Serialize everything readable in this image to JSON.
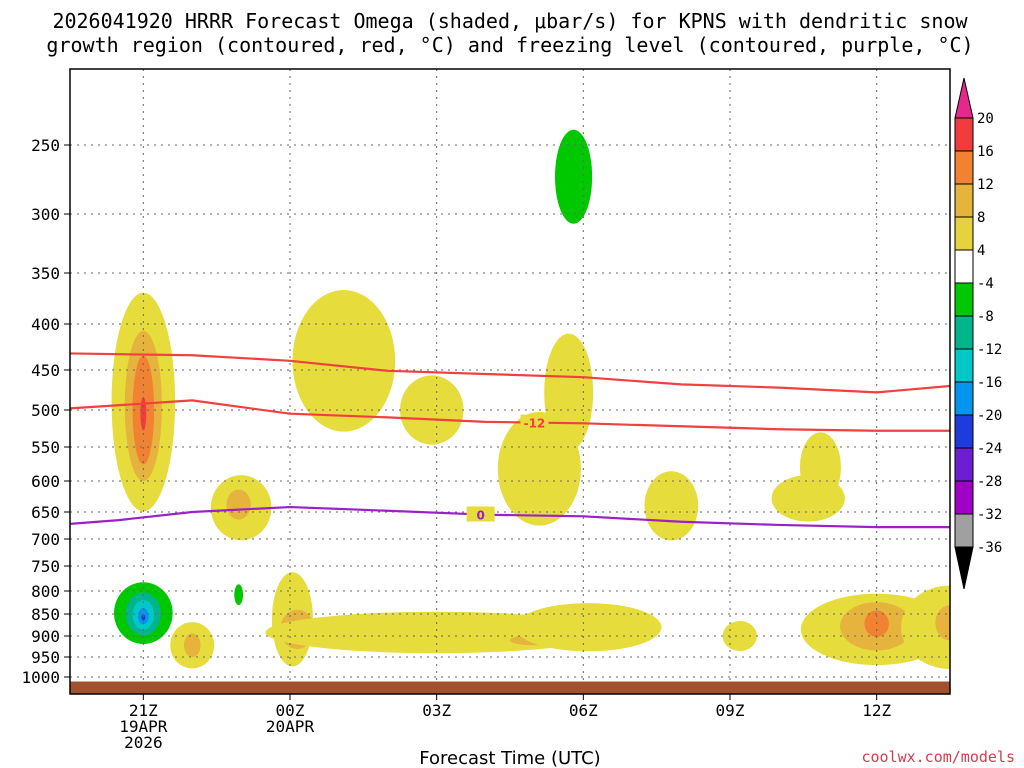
{
  "chart_data": {
    "type": "contour",
    "title_line1": "2026041920 HRRR Forecast Omega (shaded, μbar/s) for KPNS with dendritic snow",
    "title_line2": "growth region (contoured, red, °C) and freezing level (contoured, purple, °C)",
    "xlabel": "Forecast Time (UTC)",
    "credit": "coolwx.com/models",
    "x_range_hours": [
      -0.5,
      17.5
    ],
    "y_range_mb": [
      1020,
      200
    ],
    "y_ticks": [
      {
        "v": 250,
        "label": "250"
      },
      {
        "v": 300,
        "label": "300"
      },
      {
        "v": 350,
        "label": "350"
      },
      {
        "v": 400,
        "label": "400"
      },
      {
        "v": 450,
        "label": "450"
      },
      {
        "v": 500,
        "label": "500"
      },
      {
        "v": 550,
        "label": "550"
      },
      {
        "v": 600,
        "label": "600"
      },
      {
        "v": 650,
        "label": "650"
      },
      {
        "v": 700,
        "label": "700"
      },
      {
        "v": 750,
        "label": "750"
      },
      {
        "v": 800,
        "label": "800"
      },
      {
        "v": 850,
        "label": "850"
      },
      {
        "v": 900,
        "label": "900"
      },
      {
        "v": 950,
        "label": "950"
      },
      {
        "v": 1000,
        "label": "1000"
      }
    ],
    "x_ticks": [
      {
        "h": 1,
        "lines": [
          "21Z",
          "19APR",
          "2026"
        ]
      },
      {
        "h": 4,
        "lines": [
          "00Z",
          "20APR"
        ]
      },
      {
        "h": 7,
        "lines": [
          "03Z"
        ]
      },
      {
        "h": 10,
        "lines": [
          "06Z"
        ]
      },
      {
        "h": 13,
        "lines": [
          "09Z"
        ]
      },
      {
        "h": 16,
        "lines": [
          "12Z"
        ]
      }
    ],
    "colorbar": {
      "labels": [
        "20",
        "16",
        "12",
        "8",
        "4",
        "-4",
        "-8",
        "-12",
        "-16",
        "-20",
        "-24",
        "-28",
        "-32",
        "-36"
      ],
      "colors": [
        "#f03c3c",
        "#f08232",
        "#e6b43c",
        "#e6d23c",
        "#ffffff",
        "#00c800",
        "#00b48c",
        "#00c8c8",
        "#0096f0",
        "#1e3cdc",
        "#6e1ed2",
        "#a000c8",
        "#a0a0a0"
      ],
      "top_color": "#e6288c",
      "bottom_color": "#000000"
    },
    "contour_lines": [
      {
        "name": "-12",
        "color": "#f04040",
        "label_h": 9.0,
        "points": [
          [
            -0.5,
            432
          ],
          [
            2,
            434
          ],
          [
            4,
            440
          ],
          [
            6,
            451
          ],
          [
            8,
            455
          ],
          [
            10,
            459
          ],
          [
            12,
            468
          ],
          [
            14,
            472
          ],
          [
            16,
            478
          ],
          [
            17.5,
            470
          ]
        ]
      },
      {
        "name": "-12",
        "color": "#f04040",
        "label_h": 9.0,
        "points": [
          [
            -0.5,
            498
          ],
          [
            2,
            488
          ],
          [
            4,
            505
          ],
          [
            6,
            510
          ],
          [
            8,
            516
          ],
          [
            10,
            518
          ],
          [
            12,
            522
          ],
          [
            14,
            526
          ],
          [
            16,
            528
          ],
          [
            17.5,
            528
          ]
        ]
      },
      {
        "name": "0",
        "color": "#9b20c8",
        "label_h": 7.9,
        "points": [
          [
            -0.5,
            672
          ],
          [
            0.5,
            665
          ],
          [
            2,
            650
          ],
          [
            4,
            642
          ],
          [
            6,
            648
          ],
          [
            8,
            655
          ],
          [
            10,
            658
          ],
          [
            12,
            668
          ],
          [
            14,
            674
          ],
          [
            16,
            678
          ],
          [
            17.5,
            678
          ]
        ]
      }
    ],
    "omega_regions": [
      {
        "value": 4,
        "color": "#e6dc3c",
        "cx": 1.0,
        "cy": 490,
        "rx": 0.65,
        "ry": 135
      },
      {
        "value": 8,
        "color": "#e6b43c",
        "cx": 1.0,
        "cy": 495,
        "rx": 0.38,
        "ry": 95
      },
      {
        "value": 12,
        "color": "#f08232",
        "cx": 1.0,
        "cy": 500,
        "rx": 0.22,
        "ry": 70
      },
      {
        "value": 16,
        "color": "#f03c3c",
        "cx": 1.0,
        "cy": 505,
        "rx": 0.06,
        "ry": 22
      },
      {
        "value": 4,
        "color": "#e6dc3c",
        "cx": 3.0,
        "cy": 643,
        "rx": 0.62,
        "ry": 55
      },
      {
        "value": 8,
        "color": "#e6b43c",
        "cx": 2.95,
        "cy": 638,
        "rx": 0.25,
        "ry": 25
      },
      {
        "value": 4,
        "color": "#e6dc3c",
        "cx": 5.1,
        "cy": 440,
        "rx": 1.05,
        "ry": 80
      },
      {
        "value": 4,
        "color": "#e6dc3c",
        "cx": 6.9,
        "cy": 500,
        "rx": 0.65,
        "ry": 45
      },
      {
        "value": 4,
        "color": "#e6dc3c",
        "cx": 9.1,
        "cy": 582,
        "rx": 0.85,
        "ry": 85
      },
      {
        "value": 4,
        "color": "#e6dc3c",
        "cx": 9.7,
        "cy": 478,
        "rx": 0.5,
        "ry": 72
      },
      {
        "value": 4,
        "color": "#e6dc3c",
        "cx": 11.8,
        "cy": 640,
        "rx": 0.55,
        "ry": 58
      },
      {
        "value": 4,
        "color": "#e6dc3c",
        "cx": 14.6,
        "cy": 628,
        "rx": 0.75,
        "ry": 38
      },
      {
        "value": 4,
        "color": "#e6dc3c",
        "cx": 14.85,
        "cy": 580,
        "rx": 0.42,
        "ry": 52
      },
      {
        "value": -4,
        "color": "#00c800",
        "cx": 9.8,
        "cy": 273,
        "rx": 0.38,
        "ry": 34
      },
      {
        "value": -4,
        "color": "#00c800",
        "cx": 1.0,
        "cy": 848,
        "rx": 0.6,
        "ry": 68
      },
      {
        "value": -8,
        "color": "#00b48c",
        "cx": 1.0,
        "cy": 850,
        "rx": 0.36,
        "ry": 48
      },
      {
        "value": -12,
        "color": "#00c8c8",
        "cx": 1.0,
        "cy": 852,
        "rx": 0.22,
        "ry": 33
      },
      {
        "value": -16,
        "color": "#0096f0",
        "cx": 1.0,
        "cy": 855,
        "rx": 0.11,
        "ry": 18
      },
      {
        "value": -20,
        "color": "#1e3cdc",
        "cx": 1.0,
        "cy": 858,
        "rx": 0.04,
        "ry": 7
      },
      {
        "value": -4,
        "color": "#00c800",
        "cx": 2.95,
        "cy": 808,
        "rx": 0.09,
        "ry": 22
      },
      {
        "value": 4,
        "color": "#e6dc3c",
        "cx": 2.0,
        "cy": 922,
        "rx": 0.45,
        "ry": 55
      },
      {
        "value": 8,
        "color": "#e6b43c",
        "cx": 2.0,
        "cy": 922,
        "rx": 0.17,
        "ry": 28
      },
      {
        "value": 4,
        "color": "#e6dc3c",
        "cx": 4.05,
        "cy": 862,
        "rx": 0.42,
        "ry": 105
      },
      {
        "value": 8,
        "color": "#e6b43c",
        "cx": 4.15,
        "cy": 885,
        "rx": 0.35,
        "ry": 45
      },
      {
        "value": 4,
        "color": "#e6dc3c",
        "cx": 7.0,
        "cy": 892,
        "rx": 3.5,
        "ry": 48
      },
      {
        "value": 8,
        "color": "#e6b43c",
        "cx": 8.95,
        "cy": 910,
        "rx": 0.45,
        "ry": 12
      },
      {
        "value": 4,
        "color": "#e6dc3c",
        "cx": 10.1,
        "cy": 880,
        "rx": 1.5,
        "ry": 55
      },
      {
        "value": 4,
        "color": "#e6dc3c",
        "cx": 13.2,
        "cy": 900,
        "rx": 0.35,
        "ry": 35
      },
      {
        "value": 4,
        "color": "#e6dc3c",
        "cx": 16.0,
        "cy": 885,
        "rx": 1.55,
        "ry": 82
      },
      {
        "value": 8,
        "color": "#e6b43c",
        "cx": 16.0,
        "cy": 878,
        "rx": 0.75,
        "ry": 55
      },
      {
        "value": 12,
        "color": "#f08232",
        "cx": 16.0,
        "cy": 872,
        "rx": 0.25,
        "ry": 30
      },
      {
        "value": 4,
        "color": "#e6dc3c",
        "cx": 17.5,
        "cy": 880,
        "rx": 1.0,
        "ry": 95
      },
      {
        "value": 8,
        "color": "#e6b43c",
        "cx": 17.5,
        "cy": 870,
        "rx": 0.3,
        "ry": 40
      }
    ],
    "terrain_color": "#a0522d"
  }
}
